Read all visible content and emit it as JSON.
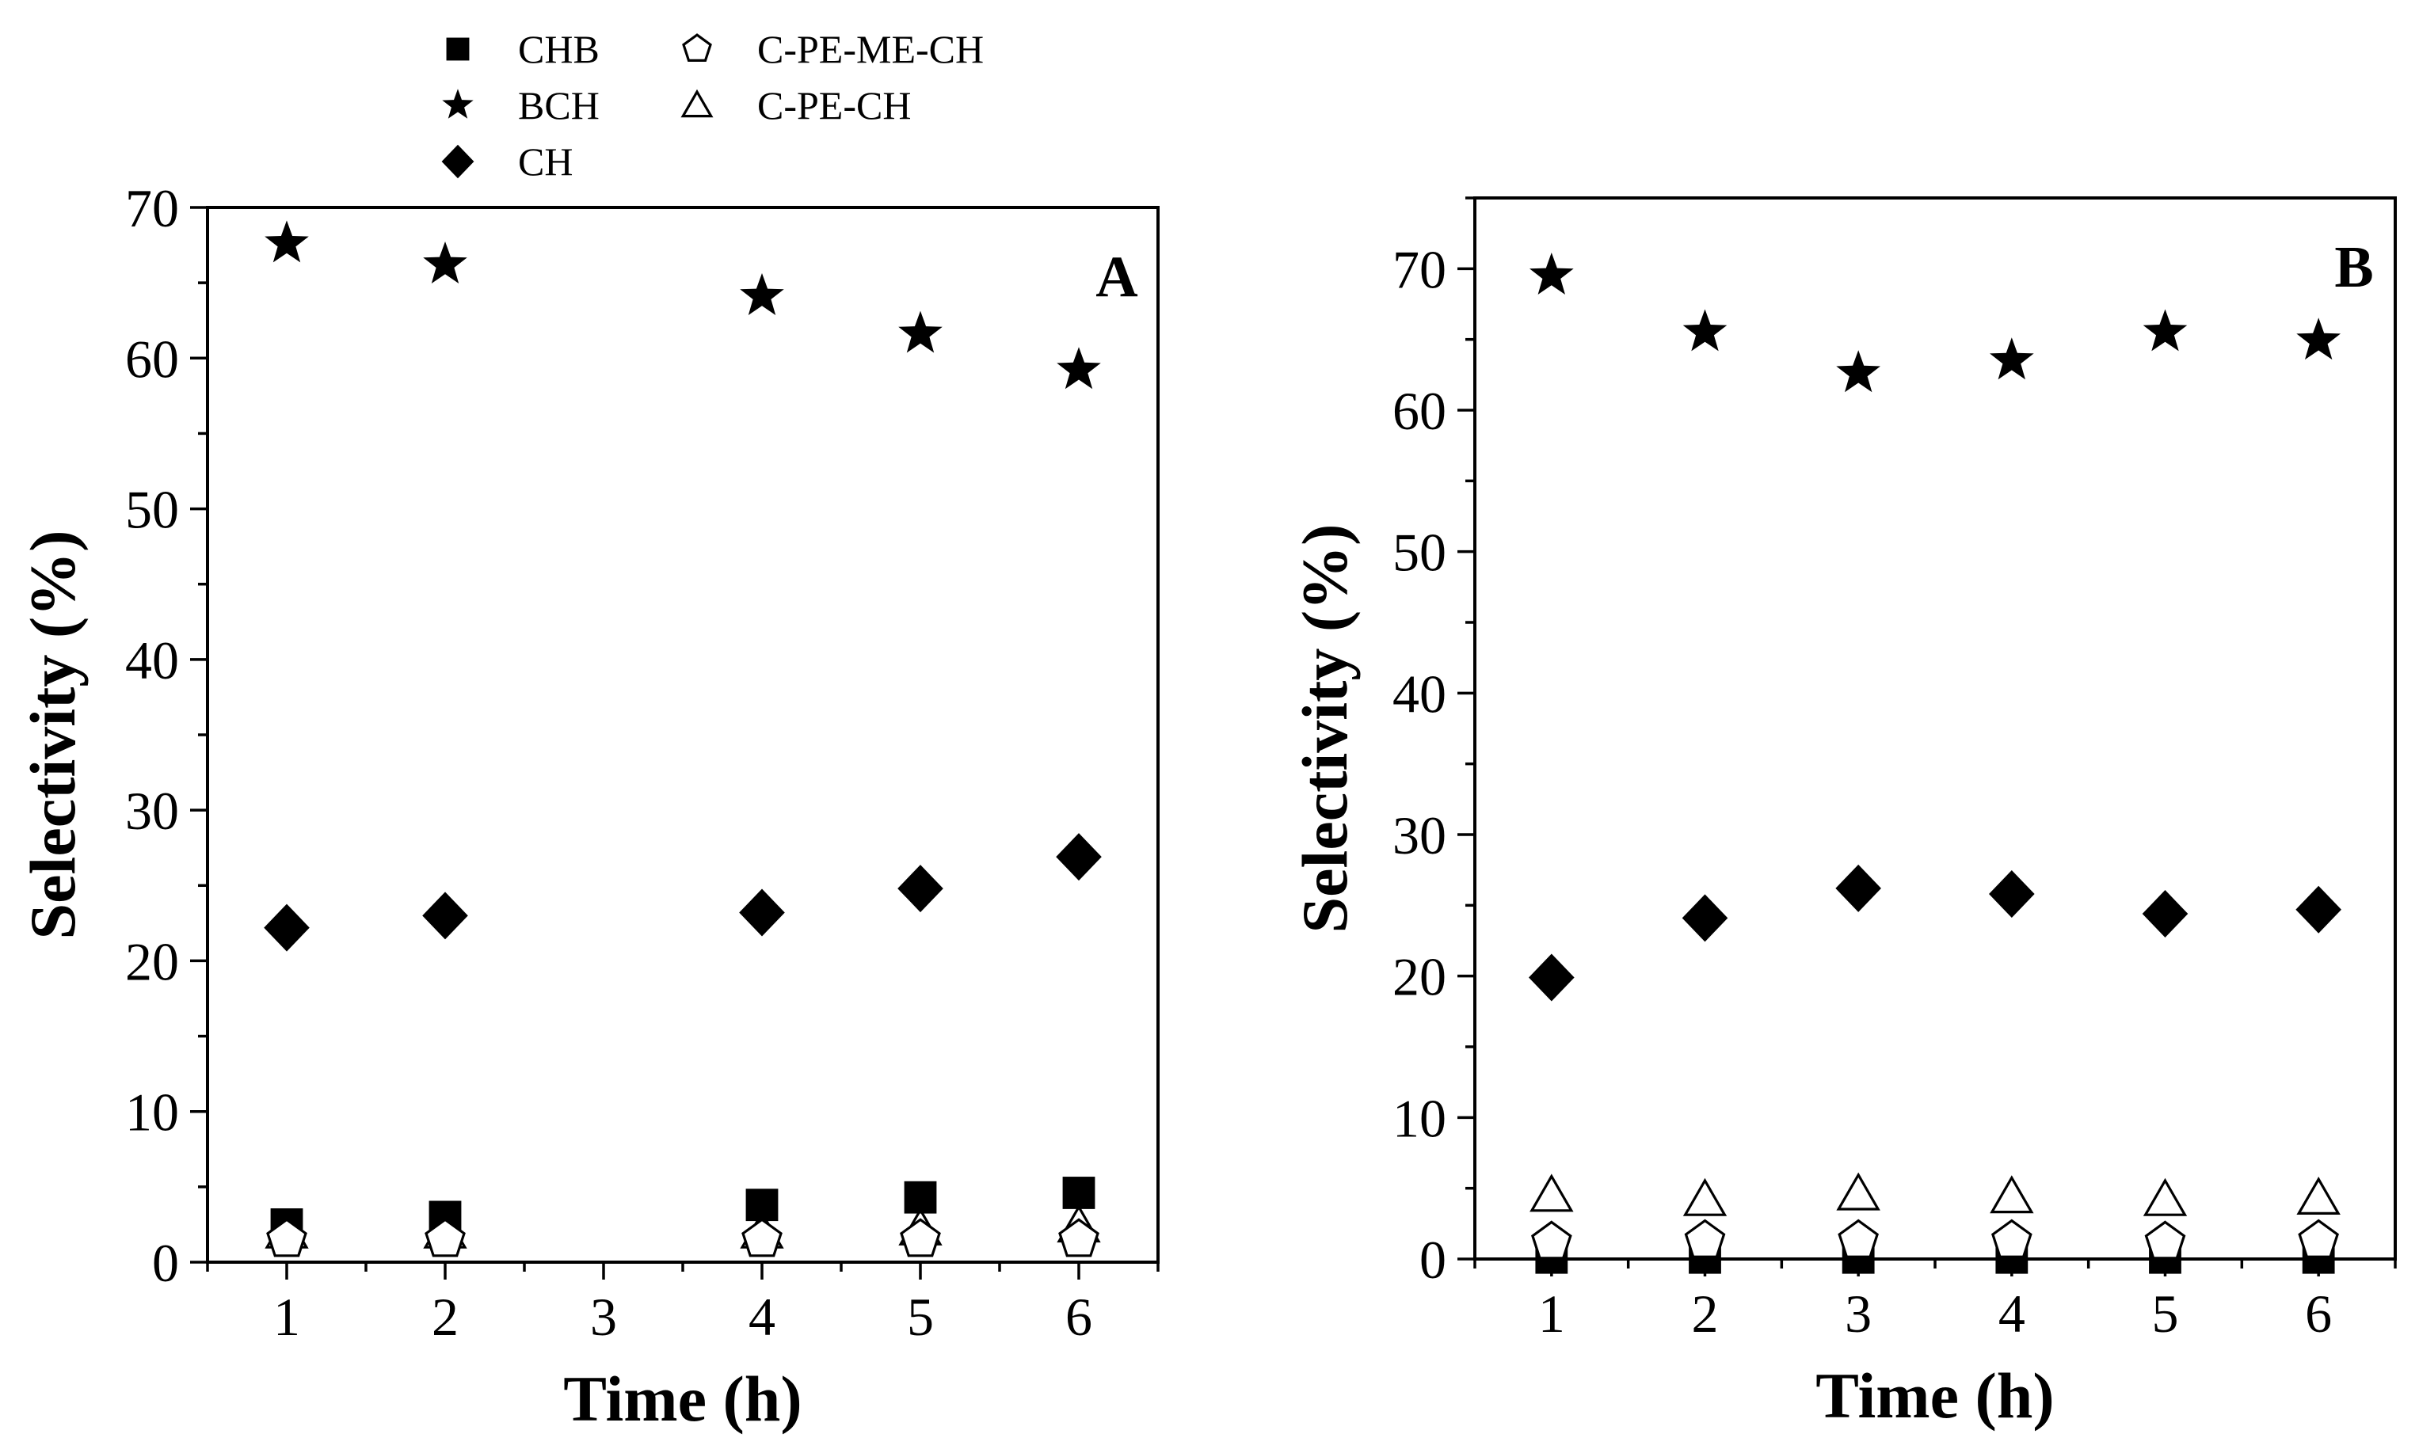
{
  "legend": {
    "items": [
      {
        "name": "CHB",
        "marker": "filled-square-icon"
      },
      {
        "name": "BCH",
        "marker": "filled-star-icon"
      },
      {
        "name": "CH",
        "marker": "filled-diamond-icon"
      },
      {
        "name": "C-PE-ME-CH",
        "marker": "open-pentagon-icon"
      },
      {
        "name": "C-PE-CH",
        "marker": "open-triangle-icon"
      }
    ]
  },
  "chart_data": [
    {
      "type": "scatter",
      "panel_label": "A",
      "xlabel": "Time (h)",
      "ylabel": "Selectivity (%)",
      "xlim": [
        0.5,
        6.5
      ],
      "ylim": [
        0,
        70
      ],
      "x_ticks": [
        1,
        2,
        3,
        4,
        5,
        6
      ],
      "y_ticks": [
        0,
        10,
        20,
        30,
        40,
        50,
        60,
        70
      ],
      "grid": false,
      "x": [
        1,
        2,
        4,
        5,
        6
      ],
      "series": [
        {
          "name": "CHB",
          "marker": "square-filled",
          "values": [
            2.5,
            3.0,
            3.8,
            4.3,
            4.6
          ]
        },
        {
          "name": "BCH",
          "marker": "star-filled",
          "values": [
            67.6,
            66.2,
            64.1,
            61.6,
            59.2
          ]
        },
        {
          "name": "CH",
          "marker": "diamond-filled",
          "values": [
            22.2,
            23.0,
            23.2,
            24.8,
            26.9
          ]
        },
        {
          "name": "C-PE-CH",
          "marker": "triangle-open",
          "values": [
            2.0,
            2.0,
            2.0,
            2.2,
            2.4
          ]
        },
        {
          "name": "C-PE-ME-CH",
          "marker": "pentagon-open",
          "values": [
            1.5,
            1.5,
            1.5,
            1.5,
            1.5
          ]
        }
      ]
    },
    {
      "type": "scatter",
      "panel_label": "B",
      "xlabel": "Time (h)",
      "ylabel": "Selectivity (%)",
      "xlim": [
        0.5,
        6.5
      ],
      "ylim": [
        0,
        75
      ],
      "x_ticks": [
        1,
        2,
        3,
        4,
        5,
        6
      ],
      "y_ticks": [
        0,
        10,
        20,
        30,
        40,
        50,
        60,
        70
      ],
      "grid": false,
      "x": [
        1,
        2,
        3,
        4,
        5,
        6
      ],
      "series": [
        {
          "name": "CHB",
          "marker": "square-filled",
          "values": [
            0.1,
            0.1,
            0.1,
            0.1,
            0.1,
            0.1
          ]
        },
        {
          "name": "BCH",
          "marker": "star-filled",
          "values": [
            69.5,
            65.5,
            62.6,
            63.5,
            65.5,
            64.9
          ]
        },
        {
          "name": "CH",
          "marker": "diamond-filled",
          "values": [
            19.9,
            24.1,
            26.2,
            25.8,
            24.4,
            24.7
          ]
        },
        {
          "name": "C-PE-CH",
          "marker": "triangle-open",
          "values": [
            4.5,
            4.2,
            4.6,
            4.4,
            4.2,
            4.3
          ]
        },
        {
          "name": "C-PE-ME-CH",
          "marker": "pentagon-open",
          "values": [
            1.2,
            1.3,
            1.3,
            1.3,
            1.2,
            1.3
          ]
        }
      ]
    }
  ]
}
